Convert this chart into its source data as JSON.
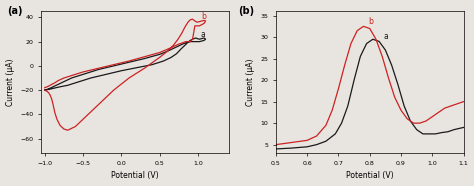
{
  "fig_width": 4.74,
  "fig_height": 1.86,
  "dpi": 100,
  "background_color": "#e8e4e0",
  "panel_a": {
    "label": "(a)",
    "xlabel": "Potential (V)",
    "ylabel": "Current (μA)",
    "xlim": [
      -1.05,
      1.4
    ],
    "ylim": [
      -72,
      45
    ],
    "xticks": [
      -1.0,
      -0.5,
      0.0,
      0.5,
      1.0
    ],
    "yticks": [
      -60,
      -40,
      -20,
      0,
      20,
      40
    ],
    "curve_a_color": "#1a1a1a",
    "curve_b_color": "#cc2222",
    "label_a": "a",
    "label_b": "b",
    "curve_a_x": [
      -1.0,
      -0.92,
      -0.82,
      -0.7,
      -0.55,
      -0.4,
      -0.2,
      0.0,
      0.2,
      0.4,
      0.55,
      0.65,
      0.72,
      0.78,
      0.83,
      0.87,
      0.9,
      0.93,
      0.95,
      0.97,
      0.99,
      1.02,
      1.05,
      1.08,
      1.1,
      1.08,
      1.05,
      1.02,
      0.99,
      0.96,
      0.93,
      0.9,
      0.87,
      0.84,
      0.8,
      0.75,
      0.7,
      0.6,
      0.5,
      0.3,
      0.1,
      -0.1,
      -0.3,
      -0.5,
      -0.65,
      -0.75,
      -0.85,
      -0.95,
      -1.0
    ],
    "curve_a_y": [
      -20,
      -19,
      -17.5,
      -16,
      -13,
      -10,
      -7,
      -4,
      -1.5,
      1,
      4,
      7,
      10,
      14,
      17,
      19.5,
      21,
      22,
      22.5,
      23,
      22.5,
      22,
      22.5,
      23,
      22,
      21,
      20.5,
      20,
      20,
      20,
      20,
      20,
      19.5,
      19,
      18,
      16.5,
      15,
      12,
      9.5,
      6,
      3,
      0,
      -3,
      -7,
      -10,
      -13,
      -16,
      -19,
      -20
    ],
    "curve_b_x": [
      -1.0,
      -0.97,
      -0.95,
      -0.93,
      -0.91,
      -0.89,
      -0.87,
      -0.84,
      -0.8,
      -0.75,
      -0.7,
      -0.6,
      -0.5,
      -0.3,
      -0.1,
      0.1,
      0.3,
      0.5,
      0.6,
      0.68,
      0.74,
      0.79,
      0.83,
      0.87,
      0.9,
      0.93,
      0.96,
      0.99,
      1.02,
      1.05,
      1.08,
      1.1,
      1.08,
      1.05,
      1.02,
      0.99,
      0.96,
      0.93,
      0.9,
      0.87,
      0.84,
      0.8,
      0.75,
      0.65,
      0.5,
      0.3,
      0.1,
      -0.1,
      -0.3,
      -0.5,
      -0.65,
      -0.75,
      -0.82,
      -0.87,
      -0.9,
      -0.93,
      -0.96,
      -1.0
    ],
    "curve_b_y": [
      -20,
      -21,
      -22,
      -24,
      -27,
      -32,
      -38,
      -44,
      -49,
      -52,
      -53,
      -50,
      -44,
      -32,
      -20,
      -10,
      -2,
      7,
      12,
      17,
      22,
      27,
      32,
      36,
      38,
      38.5,
      37,
      36,
      36.5,
      37,
      37.5,
      37,
      35,
      34,
      33,
      33,
      33,
      22,
      20,
      20,
      20,
      19,
      18,
      15,
      11,
      7.5,
      4,
      1,
      -2,
      -5,
      -8,
      -10,
      -12,
      -14,
      -15,
      -16,
      -17,
      -18
    ]
  },
  "panel_b": {
    "label": "(b)",
    "xlabel": "Potential (V)",
    "ylabel": "Current (μA)",
    "xlim": [
      0.5,
      1.1
    ],
    "ylim": [
      3,
      36
    ],
    "xticks": [
      0.5,
      0.6,
      0.7,
      0.8,
      0.9,
      1.0,
      1.1
    ],
    "yticks": [
      5,
      10,
      15,
      20,
      25,
      30,
      35
    ],
    "curve_a_color": "#1a1a1a",
    "curve_b_color": "#cc2222",
    "label_a": "a",
    "label_b": "b",
    "curve_a_x": [
      0.5,
      0.55,
      0.6,
      0.63,
      0.66,
      0.69,
      0.71,
      0.73,
      0.75,
      0.77,
      0.79,
      0.81,
      0.83,
      0.85,
      0.87,
      0.89,
      0.91,
      0.93,
      0.95,
      0.97,
      0.99,
      1.01,
      1.03,
      1.05,
      1.07,
      1.1
    ],
    "curve_a_y": [
      4.0,
      4.2,
      4.5,
      5.0,
      5.8,
      7.5,
      10.0,
      14.0,
      20.0,
      25.5,
      28.5,
      29.5,
      29.0,
      27.0,
      23.5,
      19.0,
      14.0,
      10.5,
      8.5,
      7.5,
      7.5,
      7.5,
      7.8,
      8.0,
      8.5,
      9.0
    ],
    "curve_b_x": [
      0.5,
      0.55,
      0.6,
      0.63,
      0.66,
      0.68,
      0.7,
      0.72,
      0.74,
      0.76,
      0.78,
      0.8,
      0.82,
      0.84,
      0.86,
      0.88,
      0.9,
      0.92,
      0.94,
      0.96,
      0.98,
      1.0,
      1.02,
      1.04,
      1.06,
      1.08,
      1.1
    ],
    "curve_b_y": [
      5.0,
      5.5,
      6.0,
      7.0,
      9.5,
      13.0,
      18.0,
      23.5,
      28.5,
      31.5,
      32.5,
      32.0,
      29.5,
      25.5,
      20.5,
      16.0,
      13.0,
      11.0,
      10.0,
      10.0,
      10.5,
      11.5,
      12.5,
      13.5,
      14.0,
      14.5,
      15.0
    ]
  }
}
